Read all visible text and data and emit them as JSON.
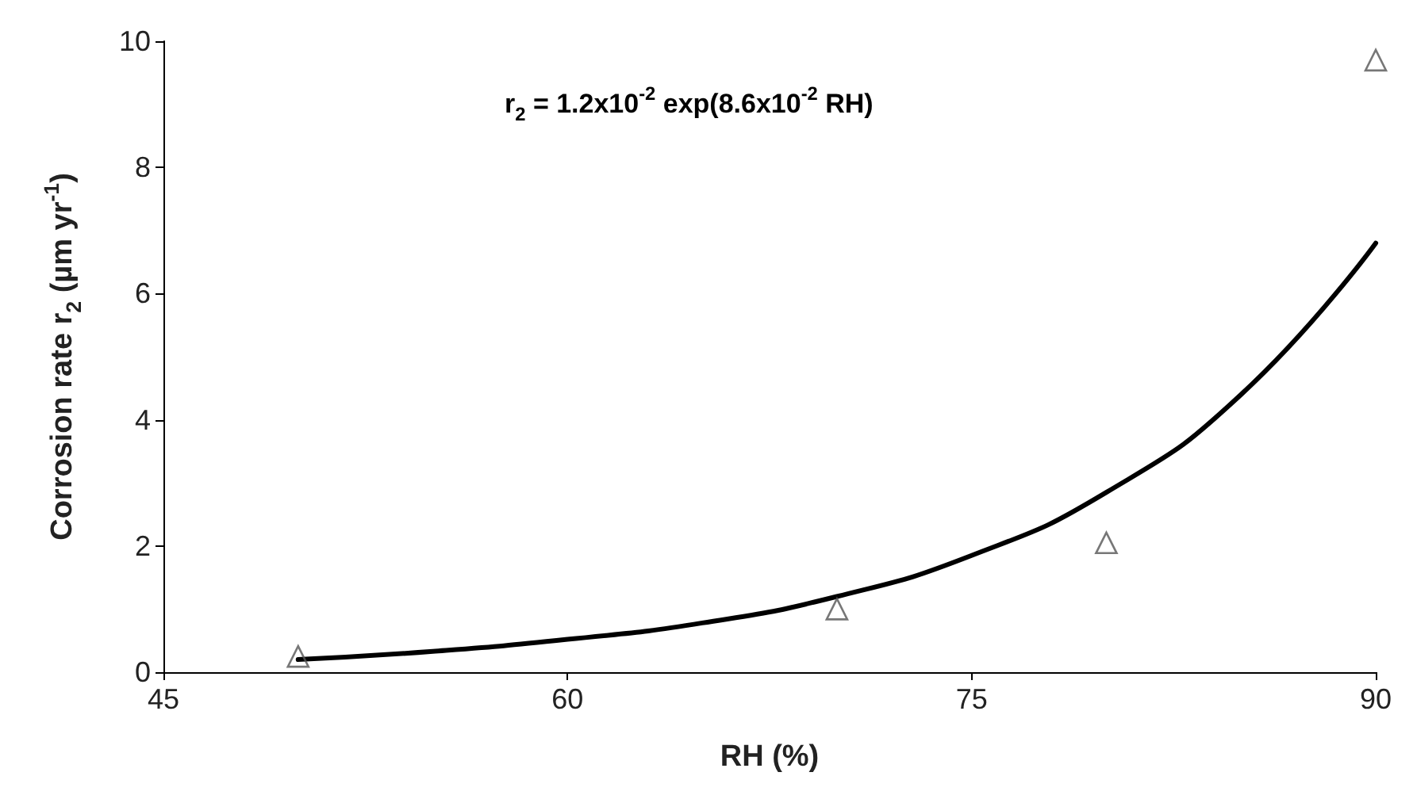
{
  "chart_data": {
    "type": "scatter",
    "xlabel": "RH (%)",
    "ylabel": "Corrosion rate r$_{2}$ (µm yr$^{-1}$)",
    "annotations": [
      "r$_{2}$ = 1.2x10$^{-2}$ exp(8.6x10$^{-2}$ RH)"
    ],
    "series": [
      {
        "color": "#555555",
        "marker": "triangle",
        "x": [
          50,
          70,
          80,
          90
        ],
        "values": [
          0.25,
          1.0,
          2.05,
          9.7
        ]
      },
      {
        "type": "line",
        "color": "#000000",
        "marker": "none",
        "line_style": "solid",
        "x": [
          50,
          55,
          60,
          65,
          70,
          75,
          80,
          85,
          90
        ],
        "values": [
          0.2,
          0.33,
          0.52,
          0.78,
          1.2,
          1.85,
          2.85,
          4.4,
          6.8
        ]
      }
    ],
    "xlim": [
      45,
      90
    ],
    "xticks": [
      45,
      60,
      75,
      90
    ],
    "ylim": [
      0,
      10
    ],
    "yticks": [
      0,
      2,
      4,
      6,
      8,
      10
    ],
    "grid": false
  }
}
